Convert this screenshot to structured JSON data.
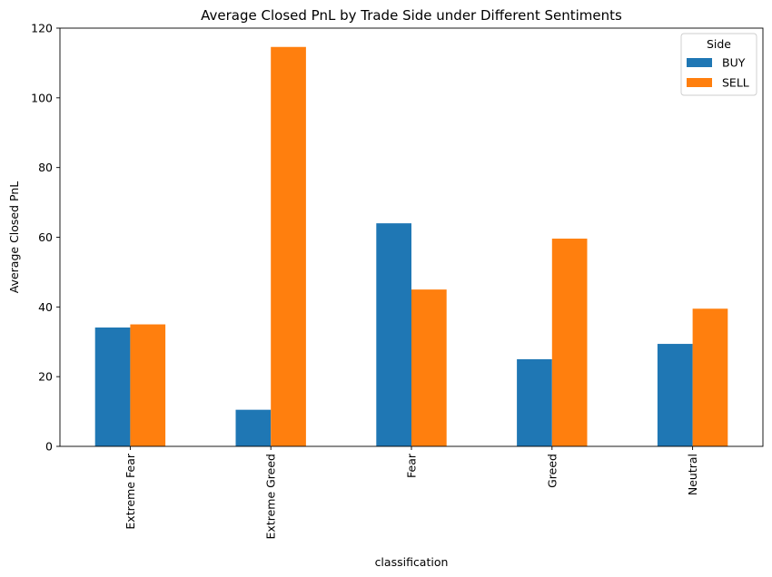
{
  "chart_data": {
    "type": "bar",
    "title": "Average Closed PnL by Trade Side under Different Sentiments",
    "xlabel": "classification",
    "ylabel": "Average Closed PnL",
    "categories": [
      "Extreme Fear",
      "Extreme Greed",
      "Fear",
      "Greed",
      "Neutral"
    ],
    "series": [
      {
        "name": "BUY",
        "color": "#1f77b4",
        "values": [
          34.1,
          10.5,
          64.0,
          25.0,
          29.4
        ]
      },
      {
        "name": "SELL",
        "color": "#ff7f0e",
        "values": [
          35.0,
          114.6,
          45.0,
          59.6,
          39.5
        ]
      }
    ],
    "ylim": [
      0,
      120
    ],
    "yticks": [
      0,
      20,
      40,
      60,
      80,
      100,
      120
    ],
    "grid": false,
    "legend": {
      "title": "Side",
      "placement": "top-right"
    }
  }
}
